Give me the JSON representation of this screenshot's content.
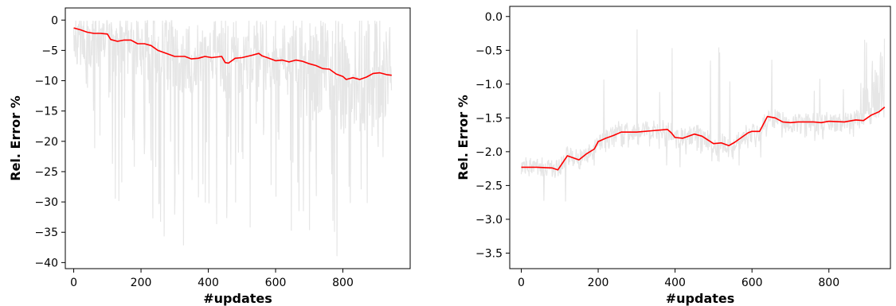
{
  "chart_data": [
    {
      "type": "line",
      "xlabel": "#updates",
      "ylabel": "Rel. Error %",
      "xlim": [
        -25,
        1000
      ],
      "ylim": [
        -41,
        2
      ],
      "xticks": [
        0,
        200,
        400,
        600,
        800
      ],
      "xtick_labels": [
        "0",
        "200",
        "400",
        "600",
        "800"
      ],
      "yticks": [
        0,
        -5,
        -10,
        -15,
        -20,
        -25,
        -30,
        -35,
        -40
      ],
      "ytick_labels": [
        "0",
        "−5",
        "−10",
        "−15",
        "−20",
        "−25",
        "−30",
        "−35",
        "−40"
      ],
      "grid": false,
      "series": [
        {
          "color": "#ff0000",
          "x": [
            0,
            20,
            40,
            60,
            80,
            100,
            110,
            130,
            150,
            170,
            190,
            210,
            230,
            250,
            270,
            300,
            330,
            350,
            370,
            390,
            410,
            440,
            450,
            460,
            480,
            500,
            530,
            550,
            560,
            580,
            600,
            620,
            640,
            660,
            680,
            700,
            720,
            740,
            760,
            780,
            800,
            810,
            830,
            850,
            870,
            890,
            910,
            930,
            945
          ],
          "y": [
            -1.3,
            -1.6,
            -2.0,
            -2.2,
            -2.2,
            -2.3,
            -3.2,
            -3.5,
            -3.3,
            -3.3,
            -3.9,
            -3.9,
            -4.2,
            -5.0,
            -5.4,
            -6.0,
            -6.0,
            -6.4,
            -6.3,
            -6.0,
            -6.2,
            -6.0,
            -7.0,
            -7.1,
            -6.3,
            -6.2,
            -5.8,
            -5.5,
            -5.9,
            -6.3,
            -6.7,
            -6.6,
            -6.9,
            -6.6,
            -6.8,
            -7.2,
            -7.5,
            -8.0,
            -8.1,
            -8.9,
            -9.3,
            -9.8,
            -9.5,
            -9.8,
            -9.4,
            -8.8,
            -8.7,
            -9.0,
            -9.1
          ]
        }
      ],
      "noise_color": "#e6e6e6"
    },
    {
      "type": "line",
      "xlabel": "#updates",
      "ylabel": "Rel. Error %",
      "xlim": [
        -30,
        960
      ],
      "ylim": [
        -3.73,
        0.15
      ],
      "xticks": [
        0,
        200,
        400,
        600,
        800
      ],
      "xtick_labels": [
        "0",
        "200",
        "400",
        "600",
        "800"
      ],
      "yticks": [
        0.0,
        -0.5,
        -1.0,
        -1.5,
        -2.0,
        -2.5,
        -3.0,
        -3.5
      ],
      "ytick_labels": [
        "0.0",
        "−0.5",
        "−1.0",
        "−1.5",
        "−2.0",
        "−2.5",
        "−3.0",
        "−3.5"
      ],
      "grid": false,
      "series": [
        {
          "color": "#ff0000",
          "x": [
            0,
            40,
            80,
            95,
            120,
            150,
            170,
            190,
            200,
            220,
            240,
            260,
            300,
            340,
            380,
            390,
            400,
            420,
            450,
            470,
            500,
            520,
            540,
            555,
            590,
            600,
            620,
            640,
            660,
            680,
            700,
            720,
            740,
            760,
            780,
            800,
            840,
            870,
            890,
            900,
            910,
            930,
            945
          ],
          "y": [
            -2.23,
            -2.23,
            -2.24,
            -2.27,
            -2.06,
            -2.12,
            -2.03,
            -1.96,
            -1.85,
            -1.8,
            -1.76,
            -1.71,
            -1.71,
            -1.69,
            -1.67,
            -1.72,
            -1.79,
            -1.8,
            -1.74,
            -1.77,
            -1.88,
            -1.87,
            -1.91,
            -1.86,
            -1.72,
            -1.7,
            -1.7,
            -1.48,
            -1.5,
            -1.56,
            -1.57,
            -1.56,
            -1.56,
            -1.56,
            -1.57,
            -1.55,
            -1.56,
            -1.53,
            -1.54,
            -1.5,
            -1.46,
            -1.41,
            -1.34
          ]
        }
      ],
      "noise_color": "#e6e6e6"
    }
  ]
}
